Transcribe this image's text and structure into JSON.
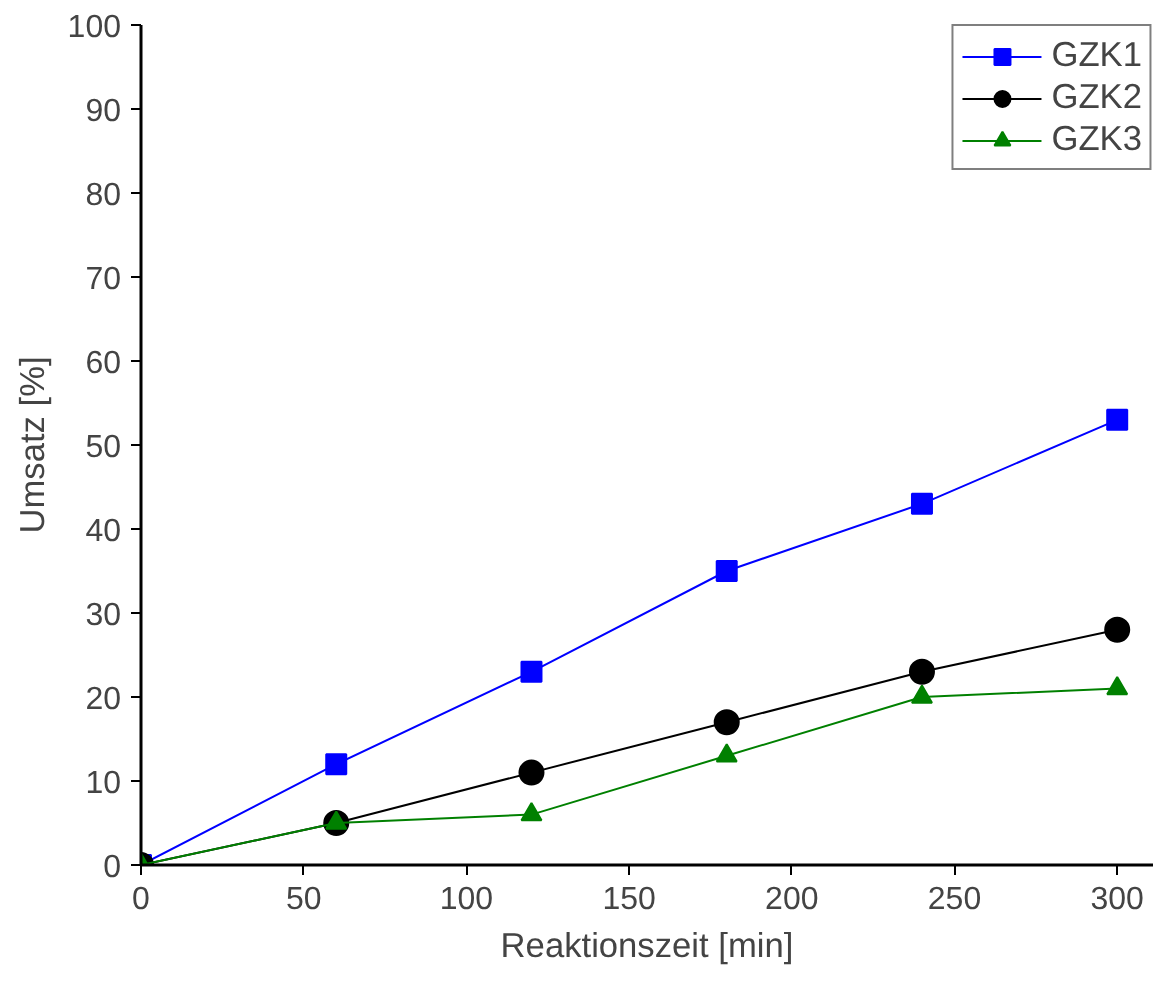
{
  "chart_data": {
    "type": "line",
    "xlabel": "Reaktionszeit [min]",
    "ylabel": "Umsatz [%]",
    "x": [
      0,
      60,
      120,
      180,
      240,
      300
    ],
    "series": [
      {
        "name": "GZK1",
        "color": "#0000ff",
        "marker": "square",
        "values": [
          0,
          12,
          23,
          35,
          43,
          53
        ]
      },
      {
        "name": "GZK2",
        "color": "#000000",
        "marker": "circle",
        "values": [
          0,
          5,
          11,
          17,
          23,
          28
        ]
      },
      {
        "name": "GZK3",
        "color": "#008000",
        "marker": "triangle",
        "values": [
          0,
          5,
          6,
          13,
          20,
          21
        ]
      }
    ],
    "xlim": [
      0,
      311
    ],
    "ylim": [
      0,
      100
    ],
    "xticks": [
      0,
      50,
      100,
      150,
      200,
      250,
      300
    ],
    "yticks": [
      0,
      10,
      20,
      30,
      40,
      50,
      60,
      70,
      80,
      90,
      100
    ],
    "grid": false,
    "legend": "top right",
    "line_style": "solid"
  }
}
